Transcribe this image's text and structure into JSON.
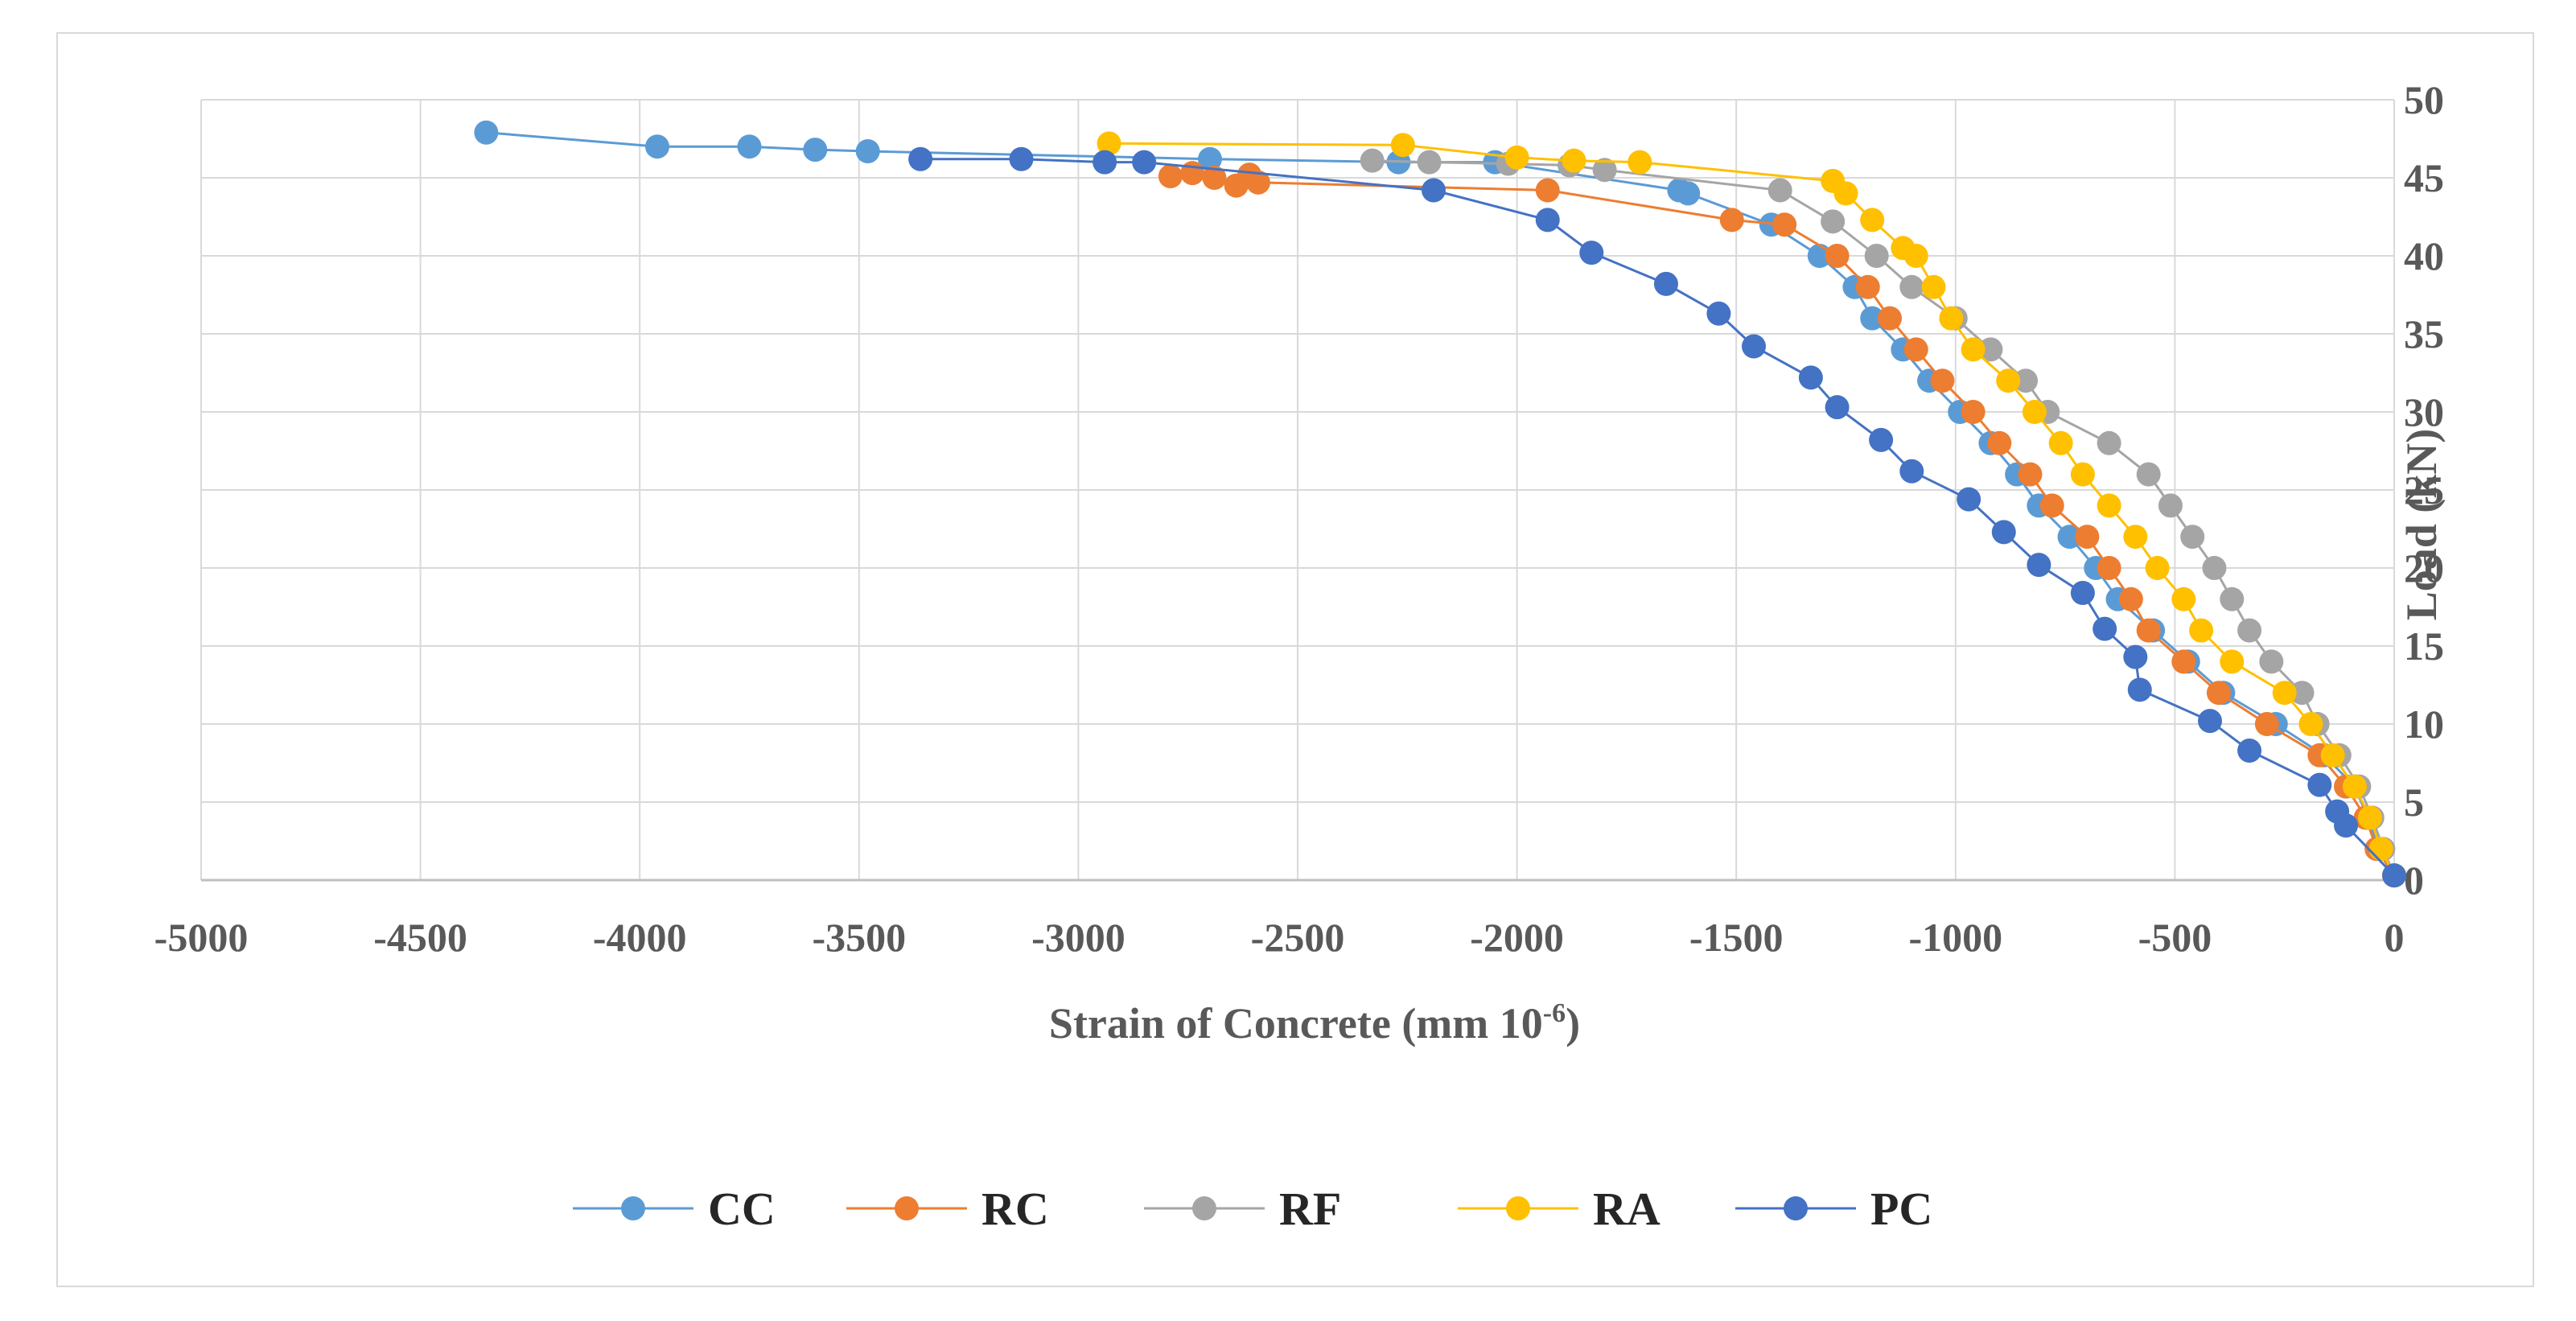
{
  "chart_data": {
    "type": "scatter",
    "title": "",
    "xlabel": "Strain of Concrete (mm 10",
    "xlabel_sup": "-6",
    "xlabel_close": ")",
    "ylabel": "Load (kN)",
    "xlim": [
      -5000,
      0
    ],
    "ylim": [
      0,
      50
    ],
    "x_ticks": [
      -5000,
      -4500,
      -4000,
      -3500,
      -3000,
      -2500,
      -2000,
      -1500,
      -1000,
      -500,
      0
    ],
    "x_tick_labels": [
      "-5000",
      "-4500",
      "-4000",
      "-3500",
      "-3000",
      "-2500",
      "-2000",
      "-1500",
      "-1000",
      "-500",
      "0"
    ],
    "y_ticks": [
      0,
      5,
      10,
      15,
      20,
      25,
      30,
      35,
      40,
      45,
      50
    ],
    "y_tick_labels": [
      "0",
      "5",
      "10",
      "15",
      "20",
      "25",
      "30",
      "35",
      "40",
      "45",
      "50"
    ],
    "grid": true,
    "legend_position": "bottom",
    "series": [
      {
        "name": "CC",
        "color": "#5b9bd5",
        "points": [
          [
            0,
            0.3
          ],
          [
            -35,
            2
          ],
          [
            -60,
            4
          ],
          [
            -90,
            6
          ],
          [
            -160,
            8
          ],
          [
            -270,
            10
          ],
          [
            -390,
            12
          ],
          [
            -470,
            14
          ],
          [
            -550,
            16
          ],
          [
            -630,
            18
          ],
          [
            -680,
            20
          ],
          [
            -740,
            22
          ],
          [
            -810,
            24
          ],
          [
            -860,
            26
          ],
          [
            -920,
            28
          ],
          [
            -990,
            30
          ],
          [
            -1060,
            32
          ],
          [
            -1120,
            34
          ],
          [
            -1190,
            36
          ],
          [
            -1230,
            38
          ],
          [
            -1310,
            40
          ],
          [
            -1420,
            42
          ],
          [
            -1610,
            44
          ],
          [
            -1630,
            44.2
          ],
          [
            -2050,
            46
          ],
          [
            -2270,
            46
          ],
          [
            -2700,
            46.2
          ],
          [
            -3480,
            46.7
          ],
          [
            -3600,
            46.8
          ],
          [
            -3750,
            47
          ],
          [
            -3960,
            47
          ],
          [
            -4350,
            47.9
          ]
        ]
      },
      {
        "name": "RC",
        "color": "#ed7d31",
        "points": [
          [
            0,
            0.3
          ],
          [
            -40,
            2
          ],
          [
            -65,
            4
          ],
          [
            -110,
            6
          ],
          [
            -170,
            8
          ],
          [
            -290,
            10
          ],
          [
            -400,
            12
          ],
          [
            -480,
            14
          ],
          [
            -560,
            16
          ],
          [
            -600,
            18
          ],
          [
            -650,
            20
          ],
          [
            -700,
            22
          ],
          [
            -780,
            24
          ],
          [
            -830,
            26
          ],
          [
            -900,
            28
          ],
          [
            -960,
            30
          ],
          [
            -1030,
            32
          ],
          [
            -1090,
            34
          ],
          [
            -1150,
            36
          ],
          [
            -1200,
            38
          ],
          [
            -1270,
            40
          ],
          [
            -1390,
            42
          ],
          [
            -1510,
            42.3
          ],
          [
            -1930,
            44.2
          ],
          [
            -2590,
            44.7
          ],
          [
            -2610,
            45.2
          ],
          [
            -2640,
            44.5
          ],
          [
            -2690,
            45
          ],
          [
            -2740,
            45.3
          ],
          [
            -2790,
            45.1
          ]
        ]
      },
      {
        "name": "RF",
        "color": "#a5a5a5",
        "points": [
          [
            0,
            0.3
          ],
          [
            -25,
            2
          ],
          [
            -50,
            4
          ],
          [
            -80,
            6
          ],
          [
            -125,
            8
          ],
          [
            -175,
            10
          ],
          [
            -210,
            12
          ],
          [
            -280,
            14
          ],
          [
            -330,
            16
          ],
          [
            -370,
            18
          ],
          [
            -410,
            20
          ],
          [
            -460,
            22
          ],
          [
            -510,
            24
          ],
          [
            -560,
            26
          ],
          [
            -650,
            28
          ],
          [
            -790,
            30
          ],
          [
            -840,
            32
          ],
          [
            -920,
            34
          ],
          [
            -1000,
            36
          ],
          [
            -1100,
            38
          ],
          [
            -1180,
            40
          ],
          [
            -1280,
            42.2
          ],
          [
            -1400,
            44.2
          ],
          [
            -1800,
            45.5
          ],
          [
            -1880,
            45.8
          ],
          [
            -2020,
            45.9
          ],
          [
            -2200,
            46
          ],
          [
            -2330,
            46.1
          ]
        ]
      },
      {
        "name": "RA",
        "color": "#ffc000",
        "points": [
          [
            0,
            0.3
          ],
          [
            -30,
            2
          ],
          [
            -55,
            4
          ],
          [
            -90,
            6
          ],
          [
            -140,
            8
          ],
          [
            -190,
            10
          ],
          [
            -250,
            12
          ],
          [
            -370,
            14
          ],
          [
            -440,
            16
          ],
          [
            -480,
            18
          ],
          [
            -540,
            20
          ],
          [
            -590,
            22
          ],
          [
            -650,
            24
          ],
          [
            -710,
            26
          ],
          [
            -760,
            28
          ],
          [
            -820,
            30
          ],
          [
            -880,
            32
          ],
          [
            -960,
            34
          ],
          [
            -1010,
            36
          ],
          [
            -1050,
            38
          ],
          [
            -1090,
            40
          ],
          [
            -1120,
            40.5
          ],
          [
            -1190,
            42.3
          ],
          [
            -1250,
            44
          ],
          [
            -1280,
            44.8
          ],
          [
            -1720,
            46
          ],
          [
            -1870,
            46.1
          ],
          [
            -2000,
            46.3
          ],
          [
            -2260,
            47.1
          ],
          [
            -2930,
            47.2
          ]
        ]
      },
      {
        "name": "PC",
        "color": "#4472c4",
        "points": [
          [
            0,
            0.3
          ],
          [
            -110,
            3.5
          ],
          [
            -130,
            4.4
          ],
          [
            -170,
            6.1
          ],
          [
            -330,
            8.3
          ],
          [
            -420,
            10.2
          ],
          [
            -580,
            12.2
          ],
          [
            -590,
            14.3
          ],
          [
            -660,
            16.1
          ],
          [
            -710,
            18.4
          ],
          [
            -810,
            20.2
          ],
          [
            -890,
            22.3
          ],
          [
            -970,
            24.4
          ],
          [
            -1100,
            26.2
          ],
          [
            -1170,
            28.2
          ],
          [
            -1270,
            30.3
          ],
          [
            -1330,
            32.2
          ],
          [
            -1460,
            34.2
          ],
          [
            -1540,
            36.3
          ],
          [
            -1660,
            38.2
          ],
          [
            -1830,
            40.2
          ],
          [
            -1930,
            42.3
          ],
          [
            -2190,
            44.2
          ],
          [
            -2850,
            46
          ],
          [
            -2940,
            46
          ],
          [
            -3130,
            46.2
          ],
          [
            -3360,
            46.2
          ]
        ]
      }
    ]
  }
}
